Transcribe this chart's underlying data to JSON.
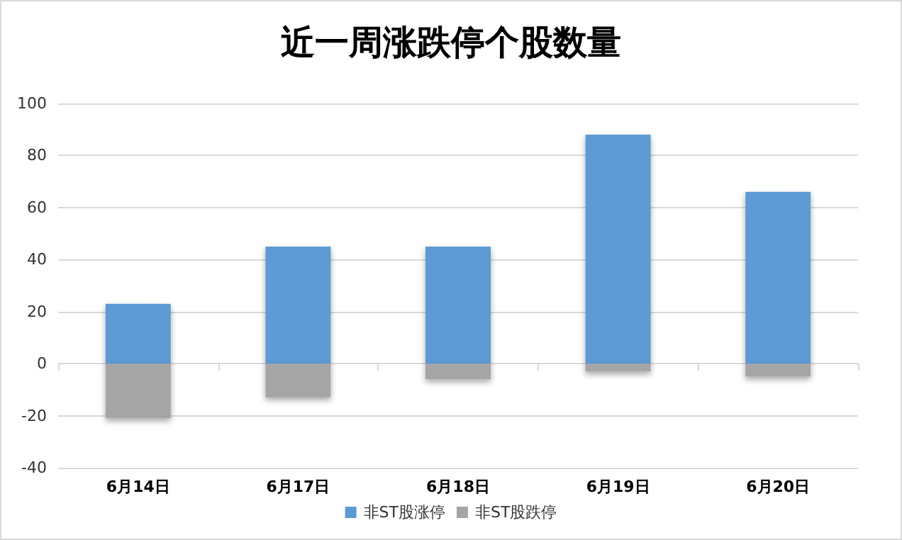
{
  "chart_data": {
    "type": "bar",
    "title": "近一周涨跌停个股数量",
    "categories": [
      "6月14日",
      "6月17日",
      "6月18日",
      "6月19日",
      "6月20日"
    ],
    "series": [
      {
        "name": "非ST股涨停",
        "color": "#5b9bd5",
        "values": [
          23,
          45,
          45,
          88,
          66
        ]
      },
      {
        "name": "非ST股跌停",
        "color": "#a5a5a5",
        "values": [
          -21,
          -13,
          -6,
          -3,
          -5
        ]
      }
    ],
    "stacked": true,
    "ylim": [
      -40,
      100
    ],
    "yticks": [
      -40,
      -20,
      0,
      20,
      40,
      60,
      80,
      100
    ],
    "grid": "y",
    "legend": "bottom"
  }
}
